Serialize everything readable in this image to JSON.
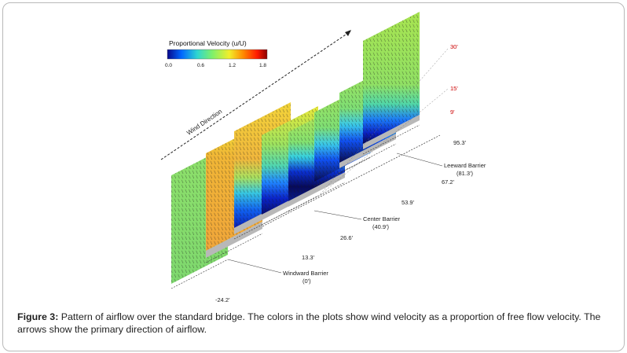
{
  "colorbar": {
    "title": "Proportional Velocity (u/U)",
    "ticks": [
      "0.0",
      "0.6",
      "1.2",
      "1.8"
    ],
    "colors": [
      "#08088a",
      "#0066ff",
      "#2fd6d0",
      "#7ef06a",
      "#f2ee2a",
      "#ff8a00",
      "#ff1a00",
      "#8a0000"
    ]
  },
  "wind_direction_label": "Wind Direction",
  "height_labels": [
    "30'",
    "15'",
    "9'"
  ],
  "planes": [
    {
      "station": "-24.2'",
      "profile": "uniform_green"
    },
    {
      "station": "",
      "profile": "orange_full"
    },
    {
      "station": "13.3'",
      "profile": "orange_blue_low"
    },
    {
      "station": "26.6'",
      "profile": "green_blue_low"
    },
    {
      "station": "",
      "profile": "green_blue_band"
    },
    {
      "station": "53.9'",
      "profile": "green_blue_bottom"
    },
    {
      "station": "67.2'",
      "profile": "green_blue_bottom"
    },
    {
      "station": "95.3'",
      "profile": "tall_green_blue"
    }
  ],
  "barriers": [
    {
      "name": "Windward Barrier",
      "position": "(0')"
    },
    {
      "name": "Center Barrier",
      "position": "(40.9')"
    },
    {
      "name": "Leeward Barrier",
      "position": "(81.3')"
    }
  ],
  "caption": {
    "label": "Figure 3:",
    "text": "Pattern of airflow over the standard bridge. The colors in the plots show wind velocity as a proportion of free flow velocity. The arrows show the primary direction of airflow."
  }
}
